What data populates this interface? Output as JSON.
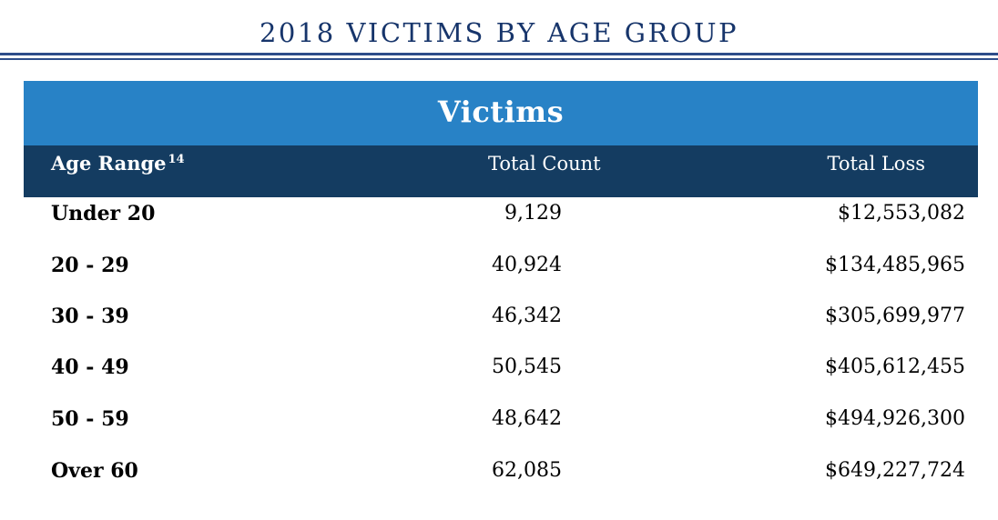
{
  "title": "2018 VICTIMS BY AGE GROUP",
  "banner": {
    "label": "Victims"
  },
  "columns": {
    "age_range": "Age Range",
    "age_range_footnote": "14",
    "total_count": "Total Count",
    "total_loss": "Total Loss"
  },
  "rows": [
    {
      "age": "Under 20",
      "count": "9,129",
      "loss": "$12,553,082"
    },
    {
      "age": "20 - 29",
      "count": "40,924",
      "loss": "$134,485,965"
    },
    {
      "age": "30 - 39",
      "count": "46,342",
      "loss": "$305,699,977"
    },
    {
      "age": "40 - 49",
      "count": "50,545",
      "loss": "$405,612,455"
    },
    {
      "age": "50 - 59",
      "count": "48,642",
      "loss": "$494,926,300"
    },
    {
      "age": "Over 60",
      "count": "62,085",
      "loss": "$649,227,724"
    }
  ],
  "colors": {
    "title": "#17356b",
    "banner": "#2882c6",
    "header": "#143c61"
  }
}
